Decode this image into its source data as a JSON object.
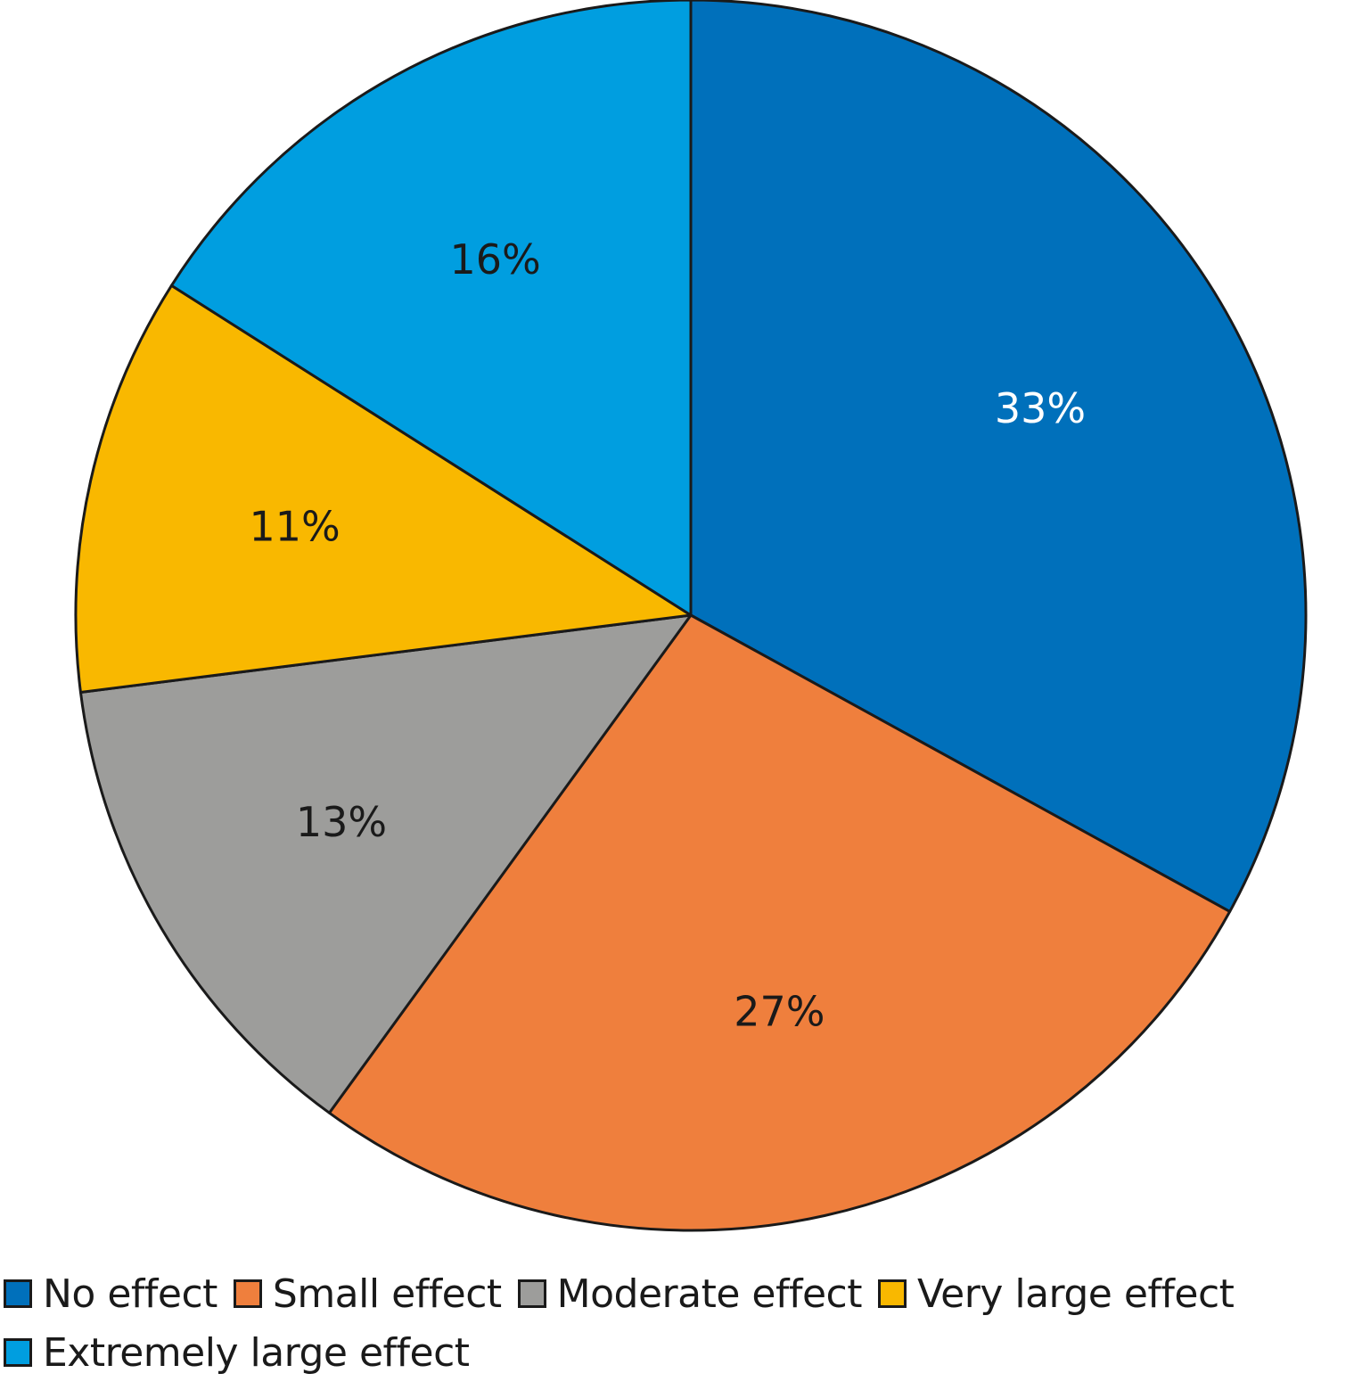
{
  "chart_data": {
    "type": "pie",
    "title": "",
    "start": "top",
    "direction": "clockwise",
    "slices": [
      {
        "name": "No effect",
        "value": 33,
        "label": "33%",
        "color": "#0070bb",
        "label_color": "#ffffff"
      },
      {
        "name": "Small effect",
        "value": 27,
        "label": "27%",
        "color": "#ef7f3d",
        "label_color": "#1a1a1a"
      },
      {
        "name": "Moderate effect",
        "value": 13,
        "label": "13%",
        "color": "#9d9d9b",
        "label_color": "#1a1a1a"
      },
      {
        "name": "Very large effect",
        "value": 11,
        "label": "11%",
        "color": "#f9b800",
        "label_color": "#1a1a1a"
      },
      {
        "name": "Extremely large effect",
        "value": 16,
        "label": "16%",
        "color": "#009ee0",
        "label_color": "#1a1a1a"
      }
    ],
    "legend": {
      "position": "bottom",
      "rows": [
        [
          "No effect",
          "Small effect",
          "Moderate effect",
          "Very large effect"
        ],
        [
          "Extremely large effect"
        ]
      ]
    }
  }
}
